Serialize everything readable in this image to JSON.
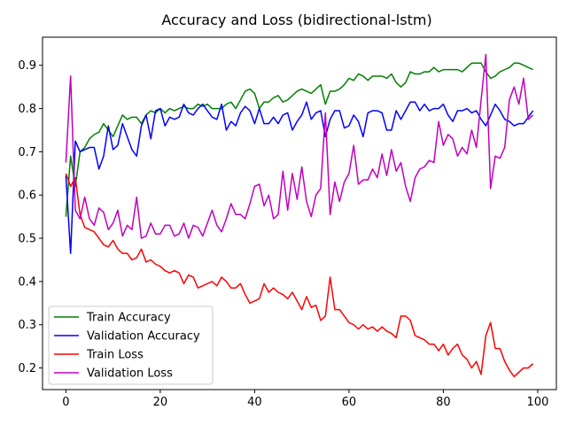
{
  "chart_data": {
    "type": "line",
    "title": "Accuracy and Loss (bidirectional-lstm)",
    "xlabel": "",
    "ylabel": "",
    "xlim": [
      -4.95,
      103.95
    ],
    "ylim": [
      0.15,
      0.965
    ],
    "xticks": [
      0,
      20,
      40,
      60,
      80,
      100
    ],
    "yticks": [
      0.2,
      0.3,
      0.4,
      0.5,
      0.6,
      0.7,
      0.8,
      0.9
    ],
    "grid": false,
    "legend_position": "lower-left",
    "x": [
      0,
      1,
      2,
      3,
      4,
      5,
      6,
      7,
      8,
      9,
      10,
      11,
      12,
      13,
      14,
      15,
      16,
      17,
      18,
      19,
      20,
      21,
      22,
      23,
      24,
      25,
      26,
      27,
      28,
      29,
      30,
      31,
      32,
      33,
      34,
      35,
      36,
      37,
      38,
      39,
      40,
      41,
      42,
      43,
      44,
      45,
      46,
      47,
      48,
      49,
      50,
      51,
      52,
      53,
      54,
      55,
      56,
      57,
      58,
      59,
      60,
      61,
      62,
      63,
      64,
      65,
      66,
      67,
      68,
      69,
      70,
      71,
      72,
      73,
      74,
      75,
      76,
      77,
      78,
      79,
      80,
      81,
      82,
      83,
      84,
      85,
      86,
      87,
      88,
      89,
      90,
      91,
      92,
      93,
      94,
      95,
      96,
      97,
      98,
      99
    ],
    "series": [
      {
        "name": "Train Accuracy",
        "color": "#008000",
        "values": [
          0.55,
          0.69,
          0.62,
          0.7,
          0.71,
          0.73,
          0.74,
          0.745,
          0.765,
          0.75,
          0.735,
          0.76,
          0.785,
          0.775,
          0.78,
          0.78,
          0.765,
          0.785,
          0.795,
          0.79,
          0.8,
          0.79,
          0.8,
          0.795,
          0.8,
          0.805,
          0.8,
          0.8,
          0.81,
          0.805,
          0.81,
          0.8,
          0.8,
          0.8,
          0.81,
          0.815,
          0.8,
          0.82,
          0.84,
          0.845,
          0.835,
          0.8,
          0.815,
          0.815,
          0.825,
          0.83,
          0.815,
          0.82,
          0.83,
          0.84,
          0.845,
          0.84,
          0.835,
          0.845,
          0.855,
          0.81,
          0.84,
          0.84,
          0.845,
          0.855,
          0.87,
          0.865,
          0.88,
          0.875,
          0.865,
          0.875,
          0.875,
          0.875,
          0.87,
          0.88,
          0.86,
          0.85,
          0.86,
          0.885,
          0.88,
          0.88,
          0.885,
          0.885,
          0.895,
          0.885,
          0.89,
          0.89,
          0.89,
          0.89,
          0.885,
          0.895,
          0.905,
          0.905,
          0.905,
          0.885,
          0.87,
          0.875,
          0.885,
          0.89,
          0.895,
          0.905,
          0.905,
          0.9,
          0.895,
          0.89
        ]
      },
      {
        "name": "Validation Accuracy",
        "color": "#0000ff",
        "values": [
          0.645,
          0.465,
          0.725,
          0.7,
          0.705,
          0.71,
          0.71,
          0.66,
          0.69,
          0.76,
          0.705,
          0.715,
          0.765,
          0.735,
          0.705,
          0.69,
          0.76,
          0.785,
          0.73,
          0.795,
          0.8,
          0.76,
          0.78,
          0.775,
          0.78,
          0.81,
          0.79,
          0.785,
          0.8,
          0.81,
          0.795,
          0.78,
          0.775,
          0.81,
          0.75,
          0.77,
          0.76,
          0.79,
          0.805,
          0.795,
          0.765,
          0.8,
          0.765,
          0.765,
          0.78,
          0.765,
          0.785,
          0.79,
          0.75,
          0.77,
          0.785,
          0.815,
          0.775,
          0.79,
          0.795,
          0.735,
          0.775,
          0.795,
          0.795,
          0.755,
          0.76,
          0.785,
          0.77,
          0.735,
          0.79,
          0.795,
          0.795,
          0.79,
          0.75,
          0.75,
          0.795,
          0.775,
          0.795,
          0.815,
          0.815,
          0.795,
          0.81,
          0.795,
          0.8,
          0.8,
          0.81,
          0.785,
          0.77,
          0.795,
          0.795,
          0.8,
          0.79,
          0.795,
          0.775,
          0.76,
          0.785,
          0.81,
          0.795,
          0.775,
          0.77,
          0.76,
          0.765,
          0.765,
          0.78,
          0.795
        ]
      },
      {
        "name": "Train Loss",
        "color": "#ff0000",
        "values": [
          0.65,
          0.62,
          0.64,
          0.555,
          0.525,
          0.52,
          0.515,
          0.5,
          0.485,
          0.48,
          0.495,
          0.475,
          0.465,
          0.465,
          0.45,
          0.455,
          0.475,
          0.445,
          0.45,
          0.44,
          0.435,
          0.425,
          0.42,
          0.425,
          0.42,
          0.395,
          0.415,
          0.41,
          0.385,
          0.39,
          0.395,
          0.4,
          0.39,
          0.41,
          0.4,
          0.385,
          0.385,
          0.395,
          0.37,
          0.35,
          0.355,
          0.36,
          0.395,
          0.375,
          0.385,
          0.375,
          0.37,
          0.36,
          0.375,
          0.355,
          0.335,
          0.365,
          0.34,
          0.345,
          0.31,
          0.32,
          0.41,
          0.335,
          0.335,
          0.32,
          0.305,
          0.3,
          0.29,
          0.3,
          0.29,
          0.295,
          0.285,
          0.295,
          0.285,
          0.28,
          0.27,
          0.32,
          0.32,
          0.31,
          0.275,
          0.27,
          0.265,
          0.255,
          0.255,
          0.24,
          0.255,
          0.23,
          0.245,
          0.255,
          0.23,
          0.22,
          0.2,
          0.215,
          0.185,
          0.275,
          0.305,
          0.245,
          0.245,
          0.215,
          0.195,
          0.18,
          0.19,
          0.2,
          0.2,
          0.21
        ]
      },
      {
        "name": "Validation Loss",
        "color": "#bf00bf",
        "values": [
          0.675,
          0.875,
          0.565,
          0.545,
          0.595,
          0.545,
          0.53,
          0.57,
          0.56,
          0.52,
          0.535,
          0.565,
          0.505,
          0.53,
          0.52,
          0.595,
          0.5,
          0.505,
          0.535,
          0.51,
          0.51,
          0.53,
          0.53,
          0.505,
          0.51,
          0.535,
          0.5,
          0.53,
          0.525,
          0.505,
          0.535,
          0.565,
          0.53,
          0.515,
          0.545,
          0.58,
          0.555,
          0.555,
          0.545,
          0.58,
          0.62,
          0.625,
          0.575,
          0.6,
          0.545,
          0.555,
          0.655,
          0.565,
          0.65,
          0.59,
          0.665,
          0.585,
          0.55,
          0.6,
          0.615,
          0.79,
          0.555,
          0.63,
          0.585,
          0.63,
          0.65,
          0.715,
          0.625,
          0.635,
          0.635,
          0.66,
          0.64,
          0.695,
          0.645,
          0.705,
          0.655,
          0.675,
          0.62,
          0.585,
          0.64,
          0.66,
          0.665,
          0.68,
          0.675,
          0.77,
          0.715,
          0.74,
          0.73,
          0.69,
          0.71,
          0.695,
          0.75,
          0.71,
          0.82,
          0.925,
          0.615,
          0.69,
          0.685,
          0.71,
          0.82,
          0.85,
          0.81,
          0.87,
          0.775,
          0.785
        ]
      }
    ]
  }
}
